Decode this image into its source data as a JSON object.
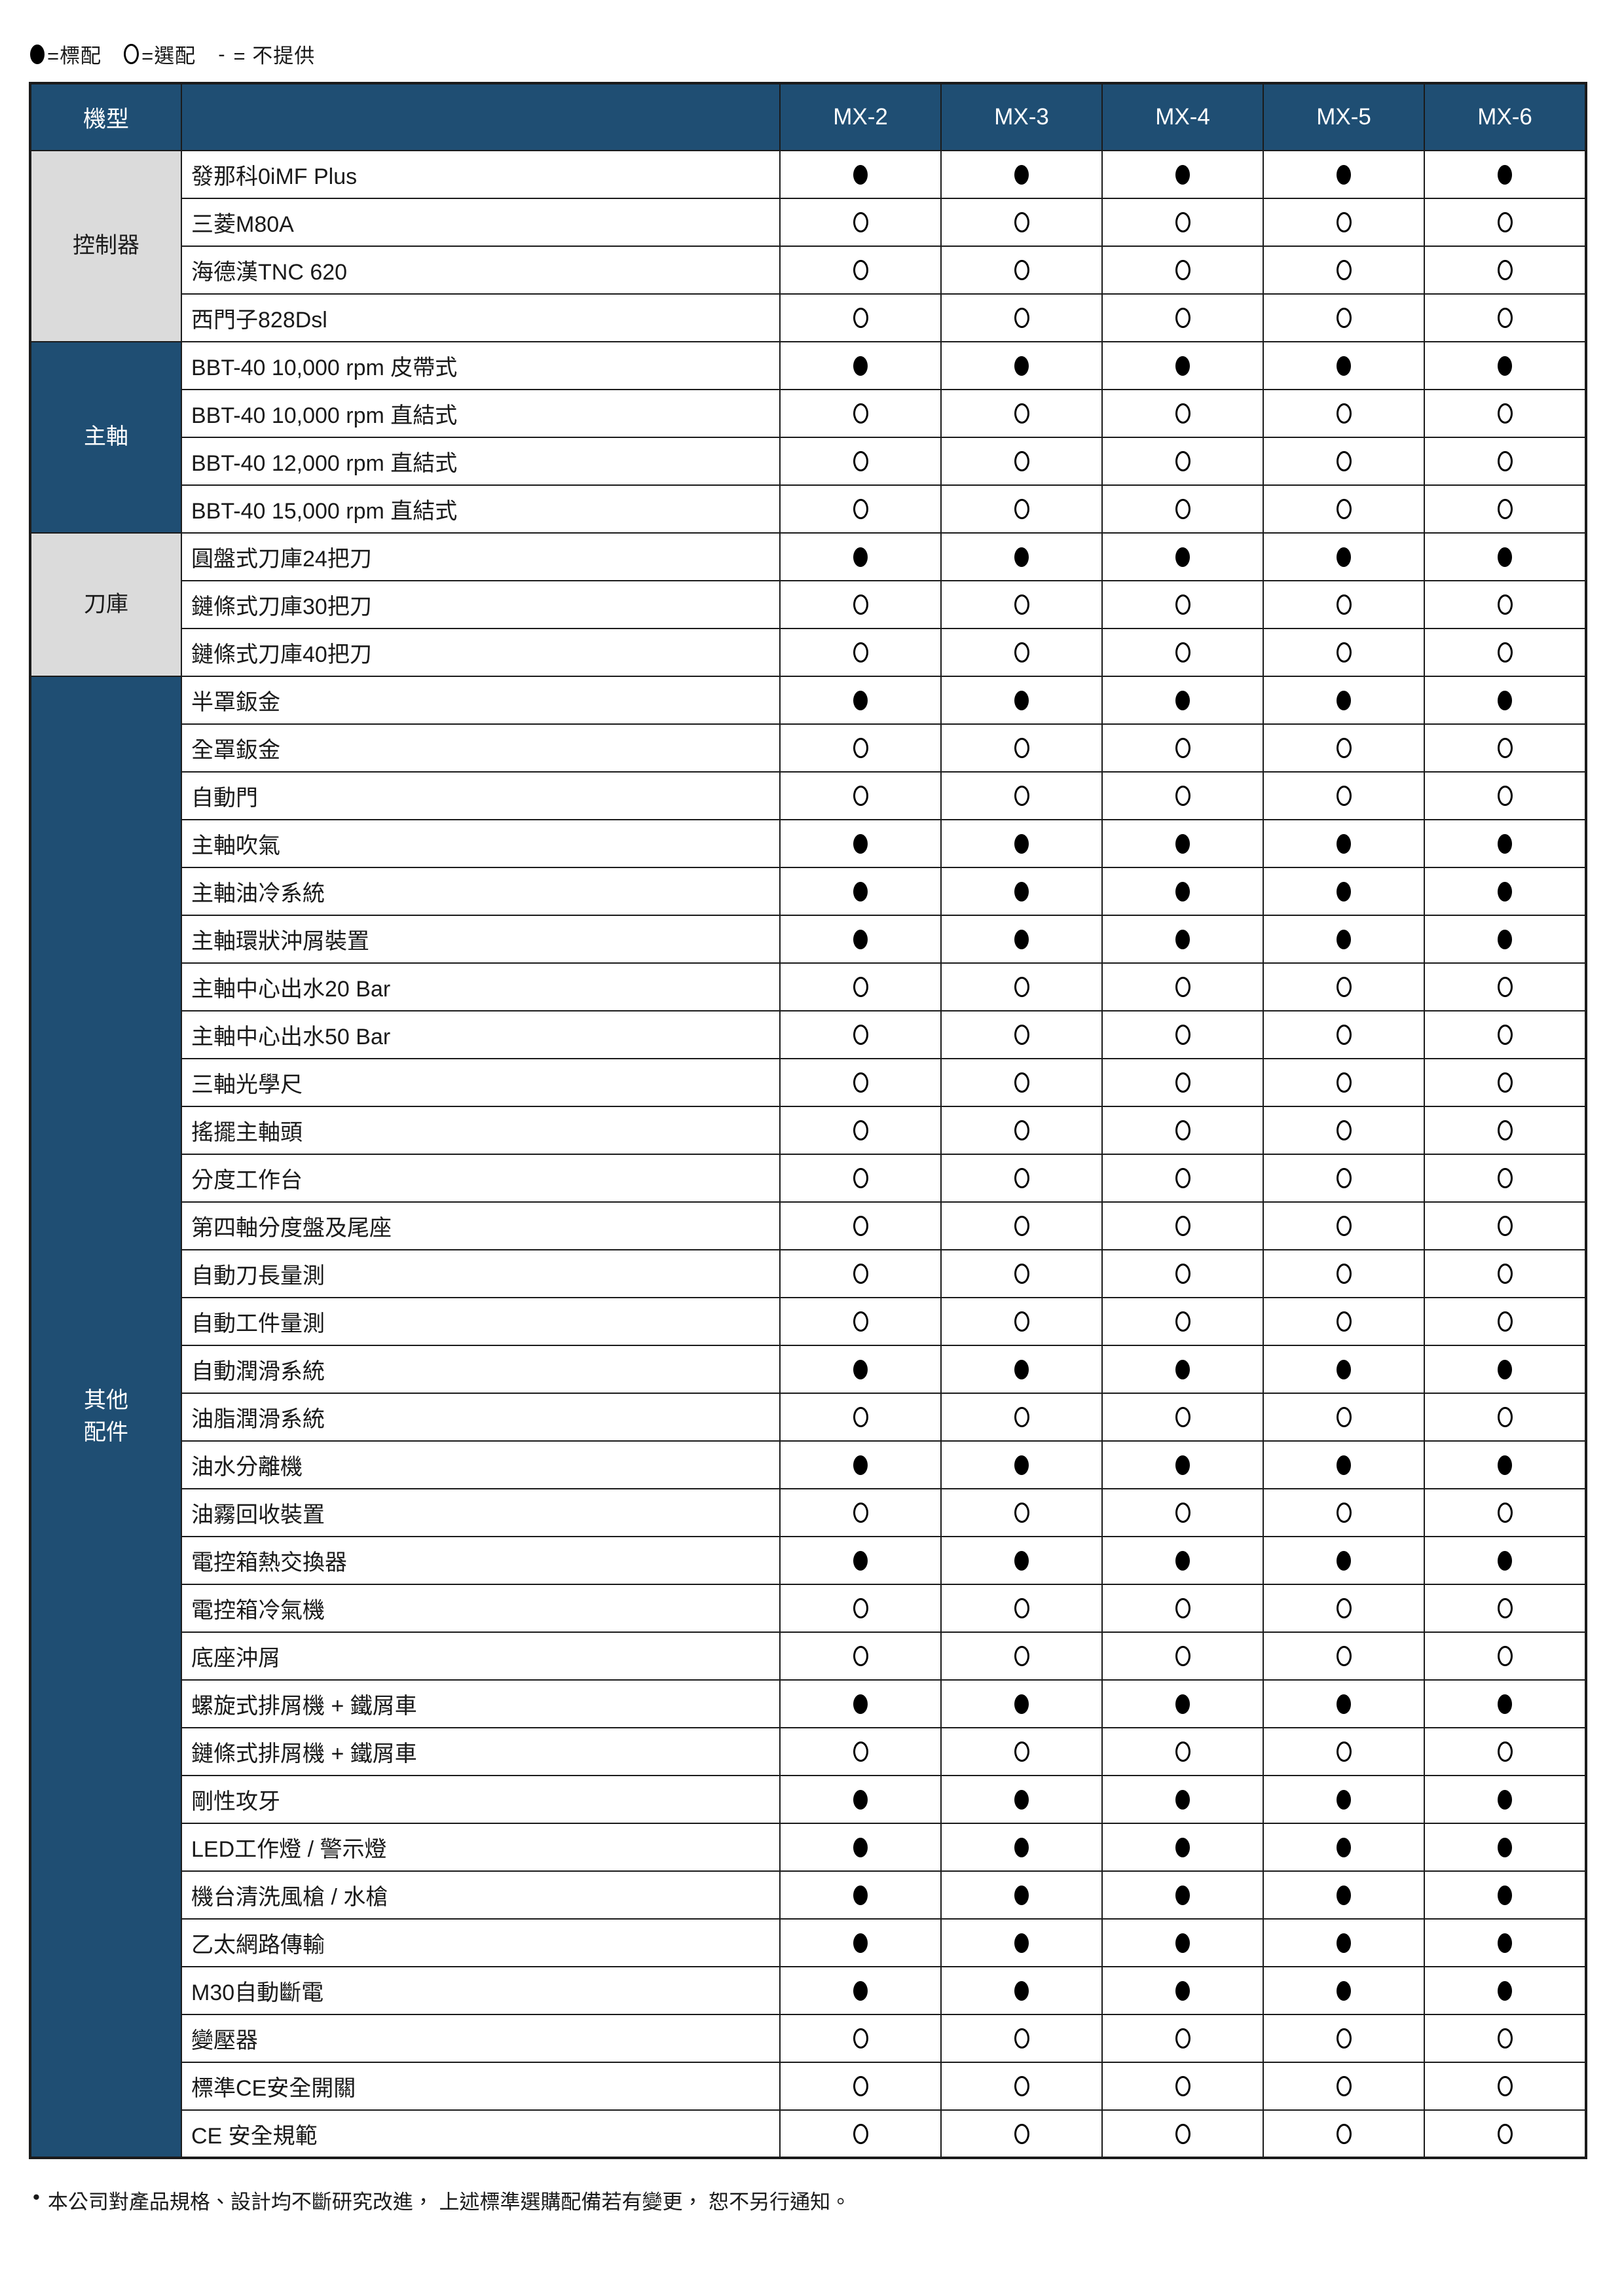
{
  "legend": {
    "standard_symbol": "●",
    "standard_label": "=標配",
    "optional_symbol": "○",
    "optional_label": "=選配",
    "none_symbol": "-",
    "none_label": "= 不提供"
  },
  "header": {
    "model_column_label": "機型",
    "models": [
      "MX-2",
      "MX-3",
      "MX-4",
      "MX-5",
      "MX-6"
    ]
  },
  "sections": [
    {
      "name": "控制器",
      "name_lines": [
        "控制器"
      ],
      "tone": "grey",
      "rows": [
        {
          "label": "發那科0iMF Plus",
          "marks": [
            "●",
            "●",
            "●",
            "●",
            "●"
          ]
        },
        {
          "label": "三菱M80A",
          "marks": [
            "○",
            "○",
            "○",
            "○",
            "○"
          ]
        },
        {
          "label": "海德漢TNC 620",
          "marks": [
            "○",
            "○",
            "○",
            "○",
            "○"
          ]
        },
        {
          "label": "西門子828Dsl",
          "marks": [
            "○",
            "○",
            "○",
            "○",
            "○"
          ]
        }
      ]
    },
    {
      "name": "主軸",
      "name_lines": [
        "主軸"
      ],
      "tone": "navy",
      "rows": [
        {
          "label": "BBT-40 10,000 rpm 皮帶式",
          "marks": [
            "●",
            "●",
            "●",
            "●",
            "●"
          ]
        },
        {
          "label": "BBT-40 10,000 rpm 直結式",
          "marks": [
            "○",
            "○",
            "○",
            "○",
            "○"
          ]
        },
        {
          "label": "BBT-40 12,000 rpm 直結式",
          "marks": [
            "○",
            "○",
            "○",
            "○",
            "○"
          ]
        },
        {
          "label": "BBT-40 15,000 rpm 直結式",
          "marks": [
            "○",
            "○",
            "○",
            "○",
            "○"
          ]
        }
      ]
    },
    {
      "name": "刀庫",
      "name_lines": [
        "刀庫"
      ],
      "tone": "grey",
      "rows": [
        {
          "label": "圓盤式刀庫24把刀",
          "marks": [
            "●",
            "●",
            "●",
            "●",
            "●"
          ]
        },
        {
          "label": "鏈條式刀庫30把刀",
          "marks": [
            "○",
            "○",
            "○",
            "○",
            "○"
          ]
        },
        {
          "label": "鏈條式刀庫40把刀",
          "marks": [
            "○",
            "○",
            "○",
            "○",
            "○"
          ]
        }
      ]
    },
    {
      "name": "其他配件",
      "name_lines": [
        "其他",
        "配件"
      ],
      "tone": "navy",
      "rows": [
        {
          "label": "半罩鈑金",
          "marks": [
            "●",
            "●",
            "●",
            "●",
            "●"
          ]
        },
        {
          "label": "全罩鈑金",
          "marks": [
            "○",
            "○",
            "○",
            "○",
            "○"
          ]
        },
        {
          "label": "自動門",
          "marks": [
            "○",
            "○",
            "○",
            "○",
            "○"
          ]
        },
        {
          "label": "主軸吹氣",
          "marks": [
            "●",
            "●",
            "●",
            "●",
            "●"
          ]
        },
        {
          "label": "主軸油冷系統",
          "marks": [
            "●",
            "●",
            "●",
            "●",
            "●"
          ]
        },
        {
          "label": "主軸環狀沖屑裝置",
          "marks": [
            "●",
            "●",
            "●",
            "●",
            "●"
          ]
        },
        {
          "label": "主軸中心出水20 Bar",
          "marks": [
            "○",
            "○",
            "○",
            "○",
            "○"
          ]
        },
        {
          "label": "主軸中心出水50 Bar",
          "marks": [
            "○",
            "○",
            "○",
            "○",
            "○"
          ]
        },
        {
          "label": "三軸光學尺",
          "marks": [
            "○",
            "○",
            "○",
            "○",
            "○"
          ]
        },
        {
          "label": "搖擺主軸頭",
          "marks": [
            "○",
            "○",
            "○",
            "○",
            "○"
          ]
        },
        {
          "label": "分度工作台",
          "marks": [
            "○",
            "○",
            "○",
            "○",
            "○"
          ]
        },
        {
          "label": "第四軸分度盤及尾座",
          "marks": [
            "○",
            "○",
            "○",
            "○",
            "○"
          ]
        },
        {
          "label": "自動刀長量測",
          "marks": [
            "○",
            "○",
            "○",
            "○",
            "○"
          ]
        },
        {
          "label": "自動工件量測",
          "marks": [
            "○",
            "○",
            "○",
            "○",
            "○"
          ]
        },
        {
          "label": "自動潤滑系統",
          "marks": [
            "●",
            "●",
            "●",
            "●",
            "●"
          ]
        },
        {
          "label": "油脂潤滑系統",
          "marks": [
            "○",
            "○",
            "○",
            "○",
            "○"
          ]
        },
        {
          "label": "油水分離機",
          "marks": [
            "●",
            "●",
            "●",
            "●",
            "●"
          ]
        },
        {
          "label": "油霧回收裝置",
          "marks": [
            "○",
            "○",
            "○",
            "○",
            "○"
          ]
        },
        {
          "label": "電控箱熱交換器",
          "marks": [
            "●",
            "●",
            "●",
            "●",
            "●"
          ]
        },
        {
          "label": "電控箱冷氣機",
          "marks": [
            "○",
            "○",
            "○",
            "○",
            "○"
          ]
        },
        {
          "label": "底座沖屑",
          "marks": [
            "○",
            "○",
            "○",
            "○",
            "○"
          ]
        },
        {
          "label": "螺旋式排屑機 + 鐵屑車",
          "marks": [
            "●",
            "●",
            "●",
            "●",
            "●"
          ]
        },
        {
          "label": "鏈條式排屑機 + 鐵屑車",
          "marks": [
            "○",
            "○",
            "○",
            "○",
            "○"
          ]
        },
        {
          "label": "剛性攻牙",
          "marks": [
            "●",
            "●",
            "●",
            "●",
            "●"
          ]
        },
        {
          "label": "LED工作燈 / 警示燈",
          "marks": [
            "●",
            "●",
            "●",
            "●",
            "●"
          ]
        },
        {
          "label": "機台清洗風槍 / 水槍",
          "marks": [
            "●",
            "●",
            "●",
            "●",
            "●"
          ]
        },
        {
          "label": "乙太網路傳輸",
          "marks": [
            "●",
            "●",
            "●",
            "●",
            "●"
          ]
        },
        {
          "label": "M30自動斷電",
          "marks": [
            "●",
            "●",
            "●",
            "●",
            "●"
          ]
        },
        {
          "label": "變壓器",
          "marks": [
            "○",
            "○",
            "○",
            "○",
            "○"
          ]
        },
        {
          "label": "標準CE安全開關",
          "marks": [
            "○",
            "○",
            "○",
            "○",
            "○"
          ]
        },
        {
          "label": "CE 安全規範",
          "marks": [
            "○",
            "○",
            "○",
            "○",
            "○"
          ]
        }
      ]
    }
  ],
  "footer": {
    "bullet": "•",
    "note": "本公司對產品規格、設計均不斷研究改進， 上述標準選購配備若有變更， 恕不另行通知。"
  },
  "colors": {
    "header_bg": "#1F4E73",
    "category_grey": "#DBDBDB",
    "border": "#1B1B1B"
  }
}
